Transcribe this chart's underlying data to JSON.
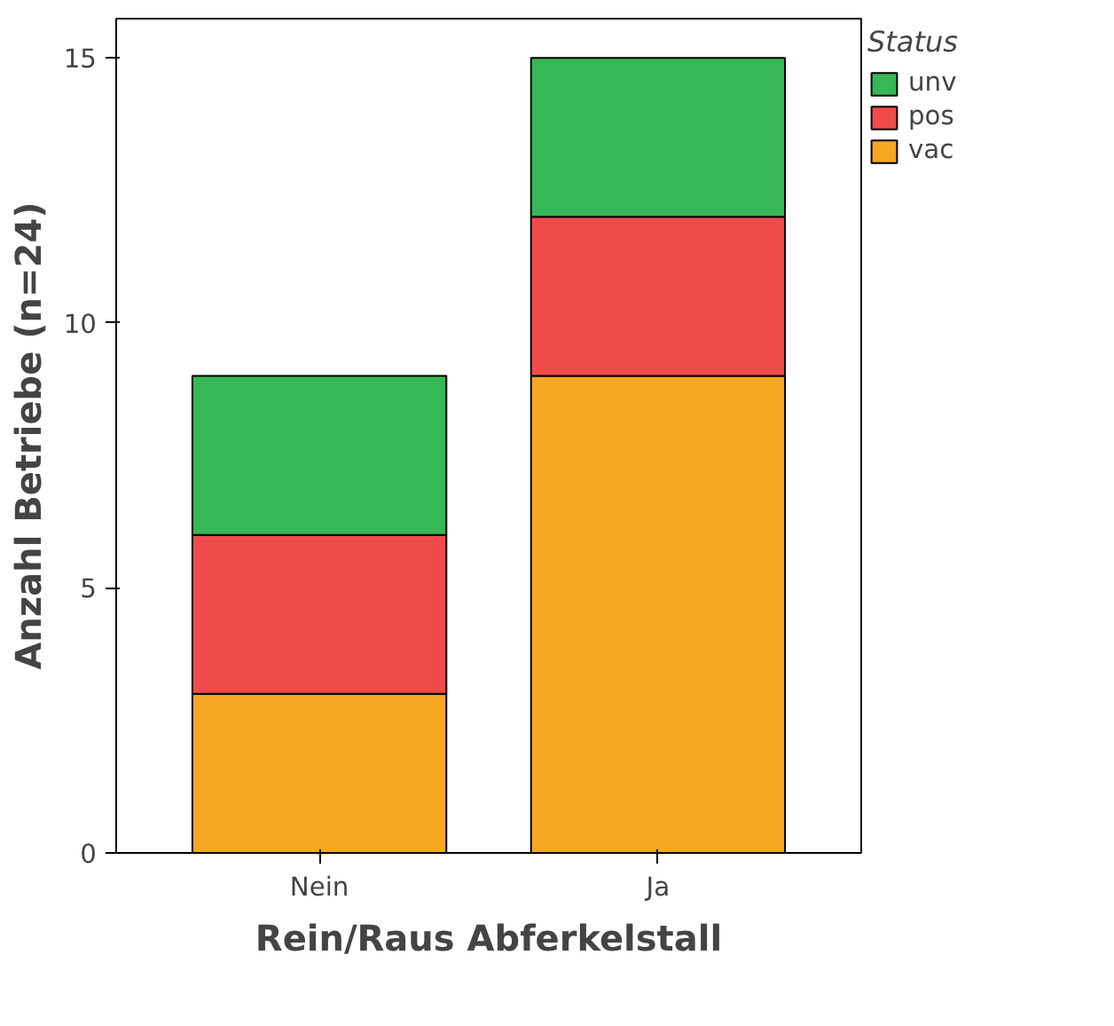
{
  "chart_data": {
    "type": "bar",
    "stacked": true,
    "xlabel": "Rein/Raus Abferkelstall",
    "ylabel": "Anzahl Betriebe (n=24)",
    "legend_title": "Status",
    "categories": [
      "Nein",
      "Ja"
    ],
    "series": [
      {
        "name": "vac",
        "color": "#f5a623",
        "values": [
          3,
          9
        ]
      },
      {
        "name": "pos",
        "color": "#ef4b4b",
        "values": [
          3,
          3
        ]
      },
      {
        "name": "unv",
        "color": "#35b855",
        "values": [
          3,
          3
        ]
      }
    ],
    "ylim": [
      0,
      15.74
    ],
    "yticks": [
      0,
      5,
      10,
      15
    ],
    "grid": false,
    "legend": "right"
  }
}
